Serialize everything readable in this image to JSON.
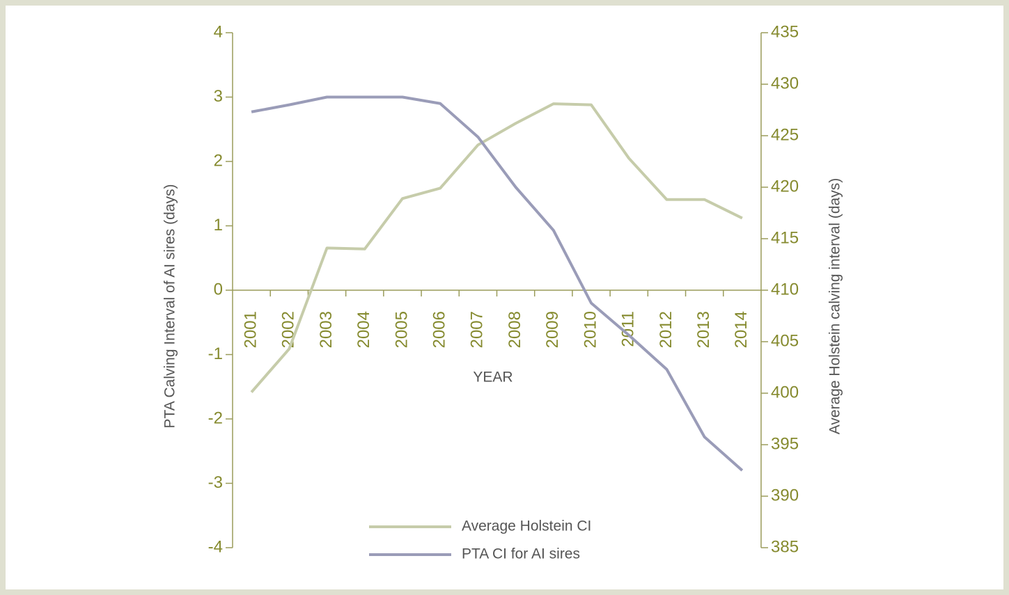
{
  "chart_data": {
    "type": "line",
    "xlabel": "YEAR",
    "ylabel": "PTA Calving Interval of AI sires (days)",
    "y2label": "Average Holstein calving interval (days)",
    "categories": [
      "2001",
      "2002",
      "2003",
      "2004",
      "2005",
      "2006",
      "2007",
      "2008",
      "2009",
      "2010",
      "2011",
      "2012",
      "2013",
      "2014"
    ],
    "series": [
      {
        "name": "Average Holstein CI",
        "color": "#c6ccaa",
        "axis": "y2",
        "values": [
          400.1,
          404.3,
          414.1,
          414,
          418.9,
          419.9,
          424.1,
          426.2,
          428.1,
          428,
          422.8,
          418.8,
          418.8,
          417
        ]
      },
      {
        "name": "PTA CI for AI sires",
        "color": "#9a9cb8",
        "values": [
          2.77,
          2.88,
          3.0,
          3.0,
          3.0,
          2.9,
          2.38,
          1.6,
          0.93,
          -0.2,
          -0.7,
          -1.23,
          -2.28,
          -2.8
        ]
      }
    ],
    "ylim": [
      -4,
      4
    ],
    "yticks": [
      -4,
      -3,
      -2,
      -1,
      0,
      1,
      2,
      3,
      4
    ],
    "y2lim": [
      385,
      435
    ],
    "y2ticks": [
      385,
      390,
      395,
      400,
      405,
      410,
      415,
      420,
      425,
      430,
      435
    ],
    "legend": "bottom"
  }
}
